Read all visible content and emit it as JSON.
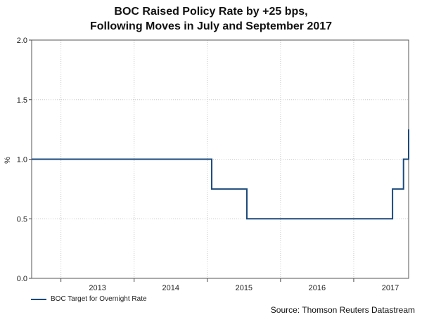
{
  "chart_data": {
    "type": "line",
    "title": "BOC Raised Policy Rate by +25 bps, Following Moves in July and September 2017",
    "title_lines": [
      "BOC Raised Policy Rate by +25 bps,",
      "Following Moves in July and September 2017"
    ],
    "xlabel": "",
    "ylabel": "%",
    "xlim": [
      2012.6,
      2017.75
    ],
    "ylim": [
      0,
      2.0
    ],
    "yticks": [
      "0.0",
      "0.5",
      "1.0",
      "1.5",
      "2.0"
    ],
    "ytick_values": [
      0,
      0.5,
      1.0,
      1.5,
      2.0
    ],
    "xtick_labels": [
      "2013",
      "2014",
      "2015",
      "2016",
      "2017"
    ],
    "xtick_centers": [
      2013.5,
      2014.5,
      2015.5,
      2016.5,
      2017.5
    ],
    "year_boundaries": [
      2013,
      2014,
      2015,
      2016,
      2017
    ],
    "grid": true,
    "legend_position": "bottom-left",
    "series": [
      {
        "name": "BOC Target for Overnight Rate",
        "color": "#1b4a7c",
        "step": true,
        "x": [
          "2012-08",
          "2015-01-21",
          "2015-07-15",
          "2017-07-12",
          "2017-09-06",
          "2017-10-31"
        ],
        "x_decimal": [
          2012.6,
          2015.06,
          2015.54,
          2017.53,
          2017.68,
          2017.75
        ],
        "values": [
          1.0,
          0.75,
          0.5,
          0.75,
          1.0,
          1.25
        ]
      }
    ]
  },
  "legend": {
    "label": "BOC Target for Overnight Rate"
  },
  "source": "Source: Thomson Reuters Datastream"
}
